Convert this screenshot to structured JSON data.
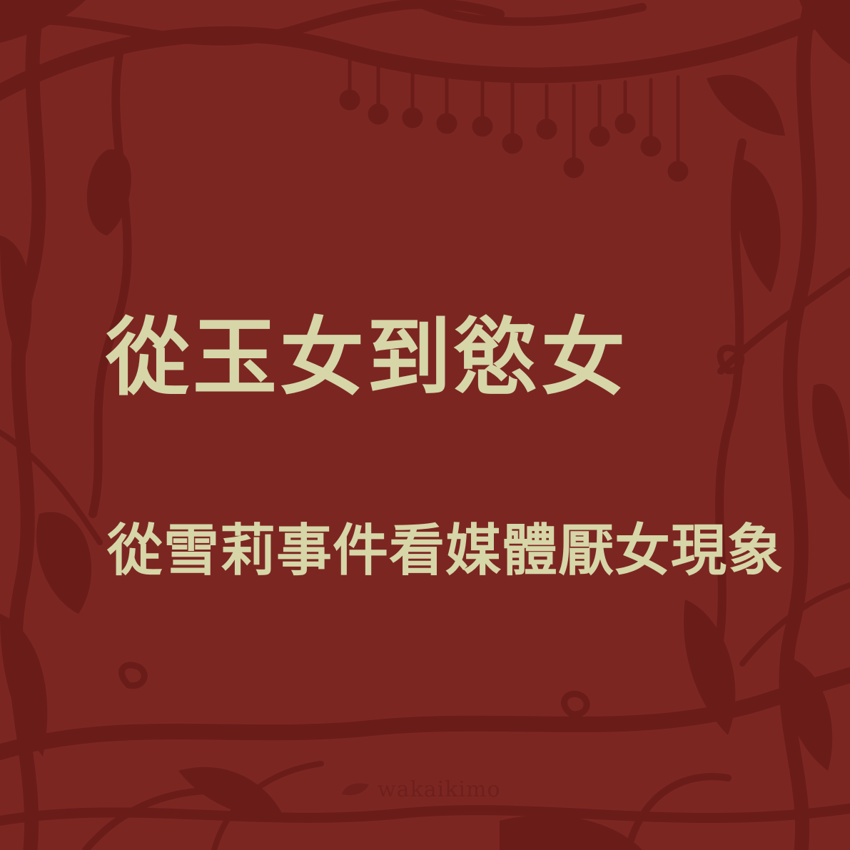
{
  "colors": {
    "background": "#7c2622",
    "vine": "#6a1c19",
    "text": "#d6d6a8",
    "logo": "#6e1f1c"
  },
  "title": "從玉女到慾女",
  "subtitle": "從雪莉事件看媒體厭女現象",
  "logo": {
    "text": "wakaikimo",
    "icon": "leaf-icon"
  }
}
